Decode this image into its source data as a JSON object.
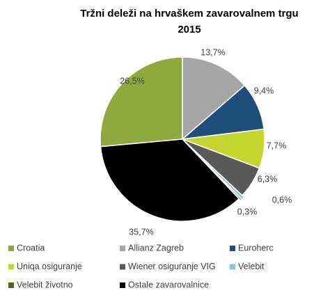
{
  "chart_data": {
    "type": "pie",
    "title": [
      "Tržni deleži na hrvaškem zavarovalnem trgu",
      "2015"
    ],
    "categories": [
      "Croatia",
      "Allianz Zagreb",
      "Euroherc",
      "Uniqa osiguranje",
      "Wiener osiguranje VIG",
      "Velebit",
      "Velebit životno",
      "Ostale zavarovalnice"
    ],
    "values": [
      26.5,
      13.7,
      9.4,
      7.7,
      6.3,
      0.6,
      0.3,
      35.7
    ],
    "value_labels": [
      "26,5%",
      "13,7%",
      "9,4%",
      "7,7%",
      "6,3%",
      "0,6%",
      "0,3%",
      "35,7%"
    ],
    "colors": [
      "#8eaa3f",
      "#a6a6a6",
      "#1f4e79",
      "#c3d52e",
      "#595959",
      "#86c6e0",
      "#4f6228",
      "#000000"
    ],
    "legend": "bottom"
  }
}
